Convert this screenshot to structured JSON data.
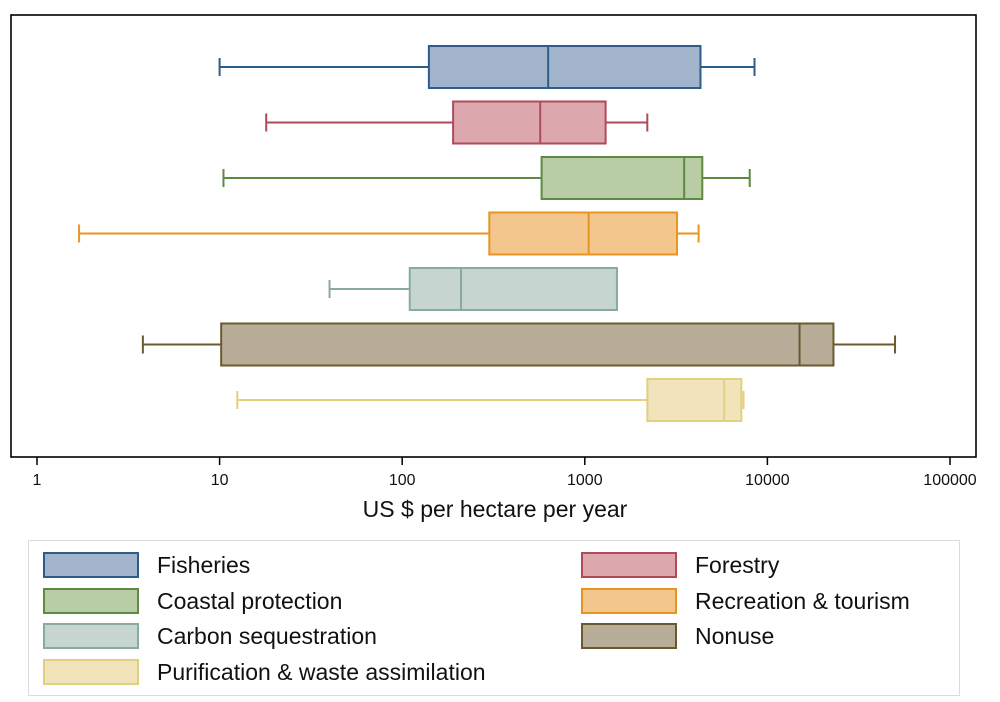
{
  "chart_data": {
    "type": "boxplot",
    "orientation": "horizontal",
    "x_scale": "log",
    "xlim": [
      1,
      100000
    ],
    "xlabel": "US $ per hectare per year",
    "ticks": [
      {
        "value": 1,
        "label": "1"
      },
      {
        "value": 10,
        "label": "10"
      },
      {
        "value": 100,
        "label": "100"
      },
      {
        "value": 1000,
        "label": "1000"
      },
      {
        "value": 10000,
        "label": "10000"
      },
      {
        "value": 100000,
        "label": "100000"
      }
    ],
    "series": [
      {
        "name": "Fisheries",
        "min": 10,
        "q1": 140,
        "median": 630,
        "q3": 4300,
        "max": 8500,
        "fill": "#a2b4cc",
        "stroke": "#2c5d8a"
      },
      {
        "name": "Forestry",
        "min": 18,
        "q1": 190,
        "median": 570,
        "q3": 1300,
        "max": 2200,
        "fill": "#dda7ae",
        "stroke": "#b04a5a"
      },
      {
        "name": "Coastal protection",
        "min": 10.5,
        "q1": 580,
        "median": 3500,
        "q3": 4400,
        "max": 8000,
        "fill": "#b8cca5",
        "stroke": "#5f8a42"
      },
      {
        "name": "Recreation & tourism",
        "min": 1.7,
        "q1": 300,
        "median": 1050,
        "q3": 3200,
        "max": 4200,
        "fill": "#f3c68e",
        "stroke": "#e8951e"
      },
      {
        "name": "Carbon sequestration",
        "min": 40,
        "q1": 110,
        "median": 210,
        "q3": 1500,
        "max": 1500,
        "fill": "#c7d5d1",
        "stroke": "#88aaa2"
      },
      {
        "name": "Nonuse",
        "min": 3.8,
        "q1": 10.2,
        "median": 15000,
        "q3": 23000,
        "max": 50000,
        "fill": "#b8ad99",
        "stroke": "#6b5a30"
      },
      {
        "name": "Purification & waste assimilation",
        "min": 12.5,
        "q1": 2200,
        "median": 5800,
        "q3": 7200,
        "max": 7400,
        "fill": "#f1e4bb",
        "stroke": "#e3cf80"
      }
    ],
    "legend_position": "bottom",
    "grid": false
  },
  "legend": {
    "items": [
      {
        "label": "Fisheries",
        "fill": "#a2b4cc",
        "stroke": "#2c5d8a"
      },
      {
        "label": "Forestry",
        "fill": "#dda7ae",
        "stroke": "#b04a5a"
      },
      {
        "label": "Coastal protection",
        "fill": "#b8cca5",
        "stroke": "#5f8a42"
      },
      {
        "label": "Recreation & tourism",
        "fill": "#f3c68e",
        "stroke": "#e8951e"
      },
      {
        "label": "Carbon sequestration",
        "fill": "#c7d5d1",
        "stroke": "#88aaa2"
      },
      {
        "label": "Nonuse",
        "fill": "#b8ad99",
        "stroke": "#6b5a30"
      },
      {
        "label": "Purification & waste assimilation",
        "fill": "#f1e4bb",
        "stroke": "#e3cf80"
      }
    ]
  }
}
